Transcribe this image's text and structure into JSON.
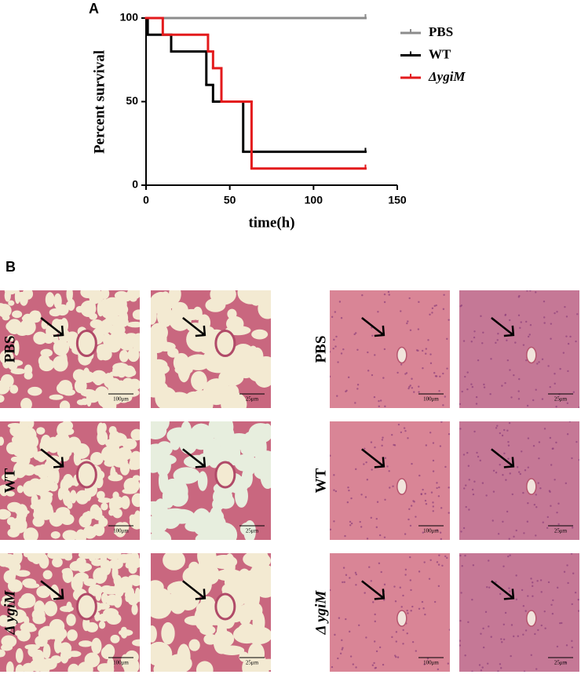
{
  "chart_data": {
    "type": "step",
    "panel_label": "A",
    "x_label": "time(h)",
    "y_label": "Percent survival",
    "xlim": [
      0,
      150
    ],
    "xticks": [
      0,
      50,
      100,
      150
    ],
    "ylim": [
      0,
      100
    ],
    "yticks": [
      0,
      50,
      100
    ],
    "legend": "right",
    "series": [
      {
        "name": "PBS",
        "color": "#8c8c8c",
        "x": [
          0,
          131
        ],
        "values": [
          100,
          100
        ]
      },
      {
        "name": "WT",
        "color": "#000000",
        "x": [
          0,
          1,
          15,
          36,
          40,
          58,
          131
        ],
        "values": [
          100,
          90,
          80,
          60,
          50,
          20,
          20
        ]
      },
      {
        "name": "ΔygiM",
        "color": "#e31a1c",
        "x": [
          0,
          10,
          37,
          40,
          45,
          63,
          131
        ],
        "values": [
          100,
          90,
          80,
          70,
          50,
          10,
          10
        ]
      }
    ]
  },
  "histology": {
    "panel_label": "B",
    "left_labels": [
      "PBS",
      "WT",
      "Δ ygiM"
    ],
    "right_labels": [
      "PBS",
      "WT",
      "Δ ygiM"
    ],
    "scale_bars": [
      [
        "100μm",
        "25μm",
        "100μm",
        "25μm"
      ],
      [
        "100μm",
        "25μm",
        "100μm",
        "25μm"
      ],
      [
        "100μm",
        "25μm",
        "100μm",
        "25μm"
      ]
    ]
  }
}
